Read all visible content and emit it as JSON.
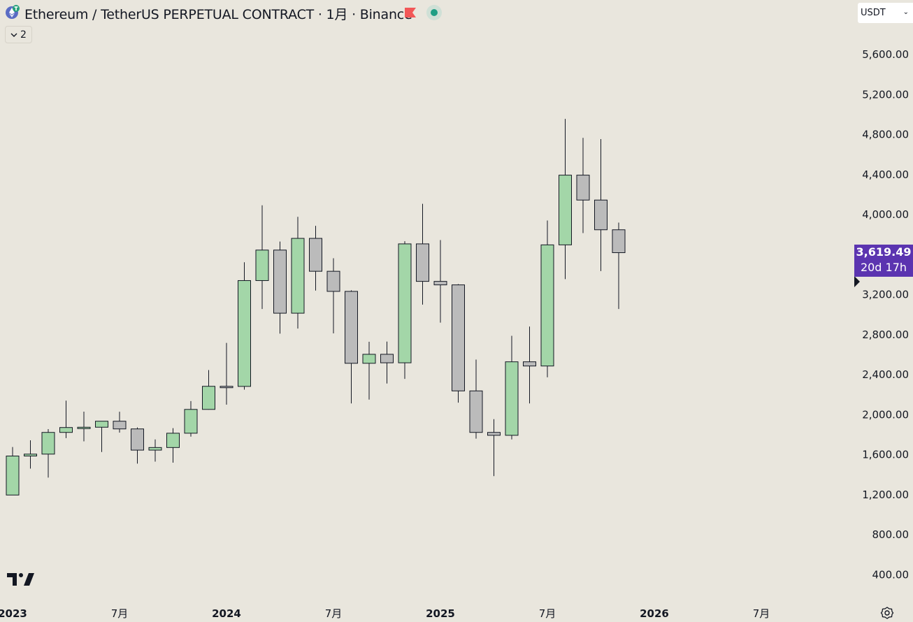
{
  "header": {
    "title": "Ethereum  / TetherUS PERPETUAL CONTRACT · 1月 · Binance",
    "indicator_count": "2",
    "currency": "USDT"
  },
  "price_tag": {
    "price": "3,619.49",
    "countdown": "20d 17h"
  },
  "colors": {
    "up": "#A3D6A8",
    "down": "#BBBBBB",
    "price_tag": "#5B34B0",
    "background": "#E9E6DD"
  },
  "icons": [
    "ethereum-icon",
    "flag-icon",
    "live-dot-icon",
    "chevron-down-icon",
    "tradingview-logo-icon",
    "settings-icon"
  ],
  "chart_data": {
    "type": "candlestick",
    "interval": "1M",
    "y_axis_ticks": [
      "5,600.00",
      "5,200.00",
      "4,800.00",
      "4,400.00",
      "4,000.00",
      "3,600.00",
      "3,200.00",
      "2,800.00",
      "2,400.00",
      "2,000.00",
      "1,600.00",
      "1,200.00",
      "800.00",
      "400.00"
    ],
    "y_axis_values": [
      5600,
      5200,
      4800,
      4400,
      4000,
      3600,
      3200,
      2800,
      2400,
      2000,
      1600,
      1200,
      800,
      400
    ],
    "x_axis_ticks": [
      {
        "label": "2023",
        "index": 0,
        "bold": true
      },
      {
        "label": "7月",
        "index": 6,
        "bold": false
      },
      {
        "label": "2024",
        "index": 12,
        "bold": true
      },
      {
        "label": "7月",
        "index": 18,
        "bold": false
      },
      {
        "label": "2025",
        "index": 24,
        "bold": true
      },
      {
        "label": "7月",
        "index": 30,
        "bold": false
      },
      {
        "label": "2026",
        "index": 36,
        "bold": true
      },
      {
        "label": "7月",
        "index": 42,
        "bold": false
      }
    ],
    "candles": [
      {
        "month": "2023-01",
        "open": 1196,
        "high": 1676,
        "low": 1195,
        "close": 1586
      },
      {
        "month": "2023-02",
        "open": 1586,
        "high": 1743,
        "low": 1460,
        "close": 1605
      },
      {
        "month": "2023-03",
        "open": 1605,
        "high": 1855,
        "low": 1370,
        "close": 1822
      },
      {
        "month": "2023-04",
        "open": 1822,
        "high": 2140,
        "low": 1765,
        "close": 1871
      },
      {
        "month": "2023-05",
        "open": 1871,
        "high": 2030,
        "low": 1733,
        "close": 1874
      },
      {
        "month": "2023-06",
        "open": 1874,
        "high": 1930,
        "low": 1626,
        "close": 1934
      },
      {
        "month": "2023-07",
        "open": 1934,
        "high": 2029,
        "low": 1820,
        "close": 1857
      },
      {
        "month": "2023-08",
        "open": 1857,
        "high": 1872,
        "low": 1510,
        "close": 1645
      },
      {
        "month": "2023-09",
        "open": 1645,
        "high": 1752,
        "low": 1530,
        "close": 1671
      },
      {
        "month": "2023-10",
        "open": 1671,
        "high": 1865,
        "low": 1520,
        "close": 1814
      },
      {
        "month": "2023-11",
        "open": 1814,
        "high": 2135,
        "low": 1780,
        "close": 2052
      },
      {
        "month": "2023-12",
        "open": 2052,
        "high": 2445,
        "low": 2050,
        "close": 2283
      },
      {
        "month": "2024-01",
        "open": 2283,
        "high": 2717,
        "low": 2100,
        "close": 2282
      },
      {
        "month": "2024-02",
        "open": 2282,
        "high": 3523,
        "low": 2250,
        "close": 3340
      },
      {
        "month": "2024-03",
        "open": 3340,
        "high": 4093,
        "low": 3056,
        "close": 3645
      },
      {
        "month": "2024-04",
        "open": 3645,
        "high": 3730,
        "low": 2810,
        "close": 3014
      },
      {
        "month": "2024-05",
        "open": 3014,
        "high": 3977,
        "low": 2860,
        "close": 3762
      },
      {
        "month": "2024-06",
        "open": 3762,
        "high": 3887,
        "low": 3240,
        "close": 3433
      },
      {
        "month": "2024-07",
        "open": 3433,
        "high": 3563,
        "low": 2812,
        "close": 3232
      },
      {
        "month": "2024-08",
        "open": 3232,
        "high": 3243,
        "low": 2112,
        "close": 2513
      },
      {
        "month": "2024-09",
        "open": 2513,
        "high": 2728,
        "low": 2150,
        "close": 2603
      },
      {
        "month": "2024-10",
        "open": 2603,
        "high": 2730,
        "low": 2311,
        "close": 2518
      },
      {
        "month": "2024-11",
        "open": 2518,
        "high": 3734,
        "low": 2357,
        "close": 3707
      },
      {
        "month": "2024-12",
        "open": 3707,
        "high": 4107,
        "low": 3100,
        "close": 3332
      },
      {
        "month": "2025-01",
        "open": 3332,
        "high": 3745,
        "low": 2920,
        "close": 3297
      },
      {
        "month": "2025-02",
        "open": 3297,
        "high": 3305,
        "low": 2120,
        "close": 2237
      },
      {
        "month": "2025-03",
        "open": 2237,
        "high": 2550,
        "low": 1760,
        "close": 1822
      },
      {
        "month": "2025-04",
        "open": 1822,
        "high": 1955,
        "low": 1385,
        "close": 1793
      },
      {
        "month": "2025-05",
        "open": 1793,
        "high": 2788,
        "low": 1752,
        "close": 2528
      },
      {
        "month": "2025-06",
        "open": 2528,
        "high": 2880,
        "low": 2112,
        "close": 2486
      },
      {
        "month": "2025-07",
        "open": 2486,
        "high": 3941,
        "low": 2373,
        "close": 3697
      },
      {
        "month": "2025-08",
        "open": 3697,
        "high": 4956,
        "low": 3355,
        "close": 4394
      },
      {
        "month": "2025-09",
        "open": 4394,
        "high": 4767,
        "low": 3815,
        "close": 4145
      },
      {
        "month": "2025-10",
        "open": 4145,
        "high": 4755,
        "low": 3435,
        "close": 3848
      },
      {
        "month": "2025-11",
        "open": 3848,
        "high": 3920,
        "low": 3056,
        "close": 3619
      }
    ],
    "last_price": 3619.49,
    "ylim": [
      300,
      5800
    ],
    "grid": false
  }
}
